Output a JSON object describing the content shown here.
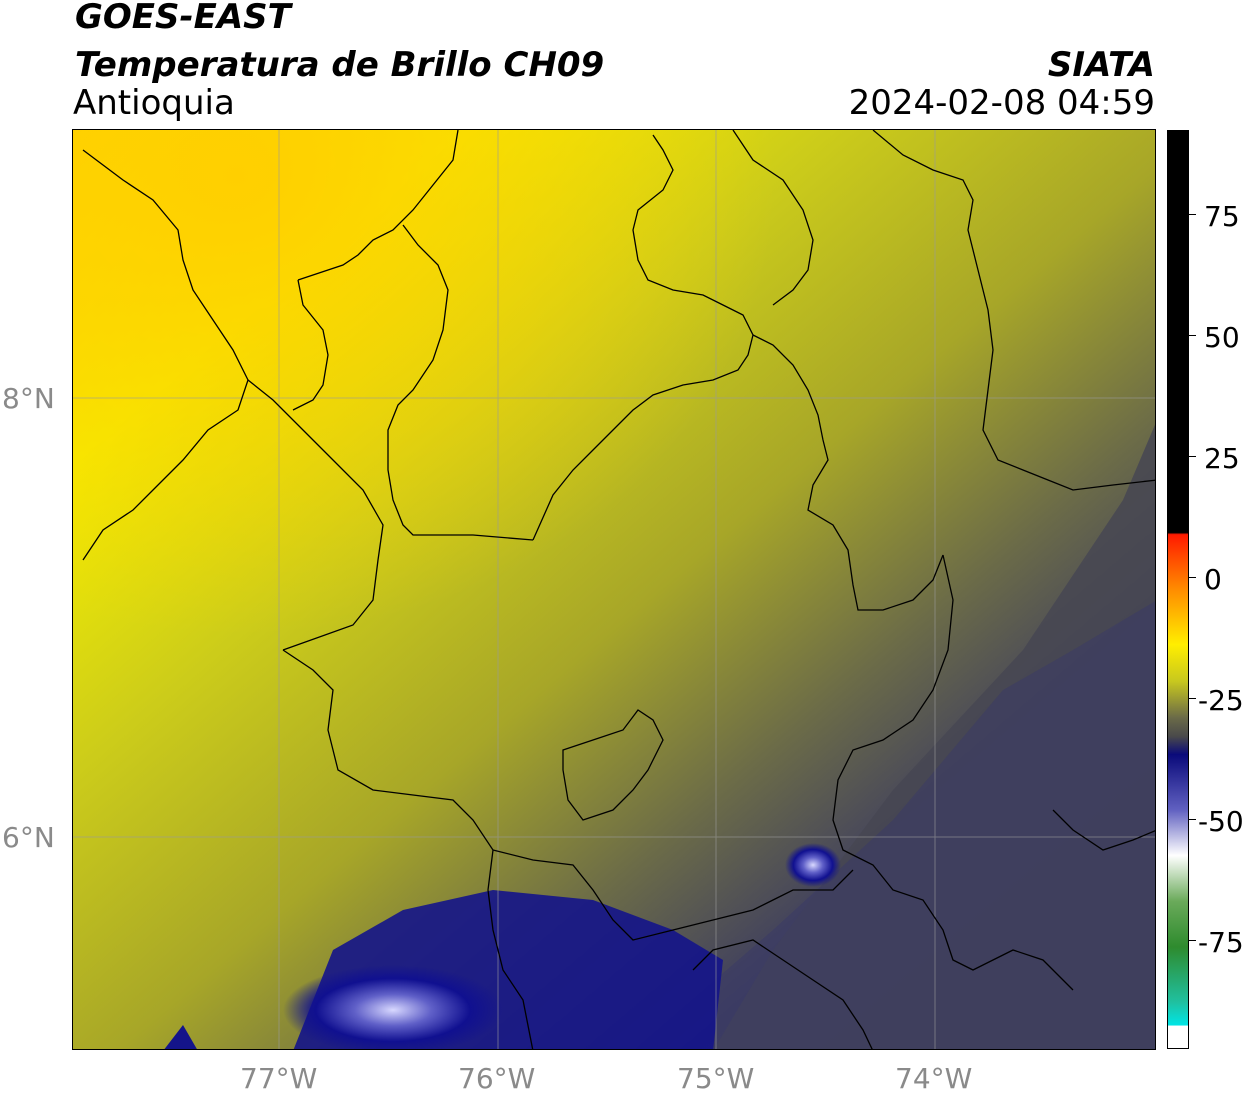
{
  "header": {
    "satellite": "GOES-EAST",
    "product": "Temperatura de Brillo CH09",
    "region": "Antioquia",
    "organization": "SIATA",
    "datetime": "2024-02-08 04:59"
  },
  "map_axes": {
    "lon_labels": [
      "77°W",
      "76°W",
      "75°W",
      "74°W"
    ],
    "lat_labels": [
      "8°N",
      "6°N"
    ]
  },
  "colorbar": {
    "tick_labels": [
      "75",
      "50",
      "25",
      "0",
      "-25",
      "-50",
      "-75"
    ],
    "colors": {
      "black": "#000000",
      "red": "#ff1a00",
      "orange": "#ff8c00",
      "yellow": "#ffff00",
      "olive": "#c8c81e",
      "gray": "#4a4a4a",
      "navy": "#0a0a7a",
      "white": "#ffffff",
      "green": "#2e8b2e",
      "cyan": "#00e5e5"
    }
  }
}
